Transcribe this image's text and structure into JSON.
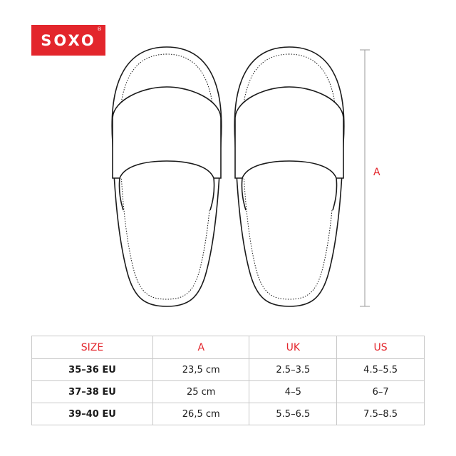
{
  "brand": {
    "logo_text": "SOXO",
    "registered_mark": "®",
    "color": "#e3262c"
  },
  "diagram": {
    "dimension_label": "A"
  },
  "size_table": {
    "headers": [
      "SIZE",
      "A",
      "UK",
      "US"
    ],
    "rows": [
      [
        "35–36 EU",
        "23,5 cm",
        "2.5–3.5",
        "4.5–5.5"
      ],
      [
        "37–38 EU",
        "25 cm",
        "4–5",
        "6–7"
      ],
      [
        "39–40 EU",
        "26,5 cm",
        "5.5–6.5",
        "7.5–8.5"
      ]
    ]
  }
}
